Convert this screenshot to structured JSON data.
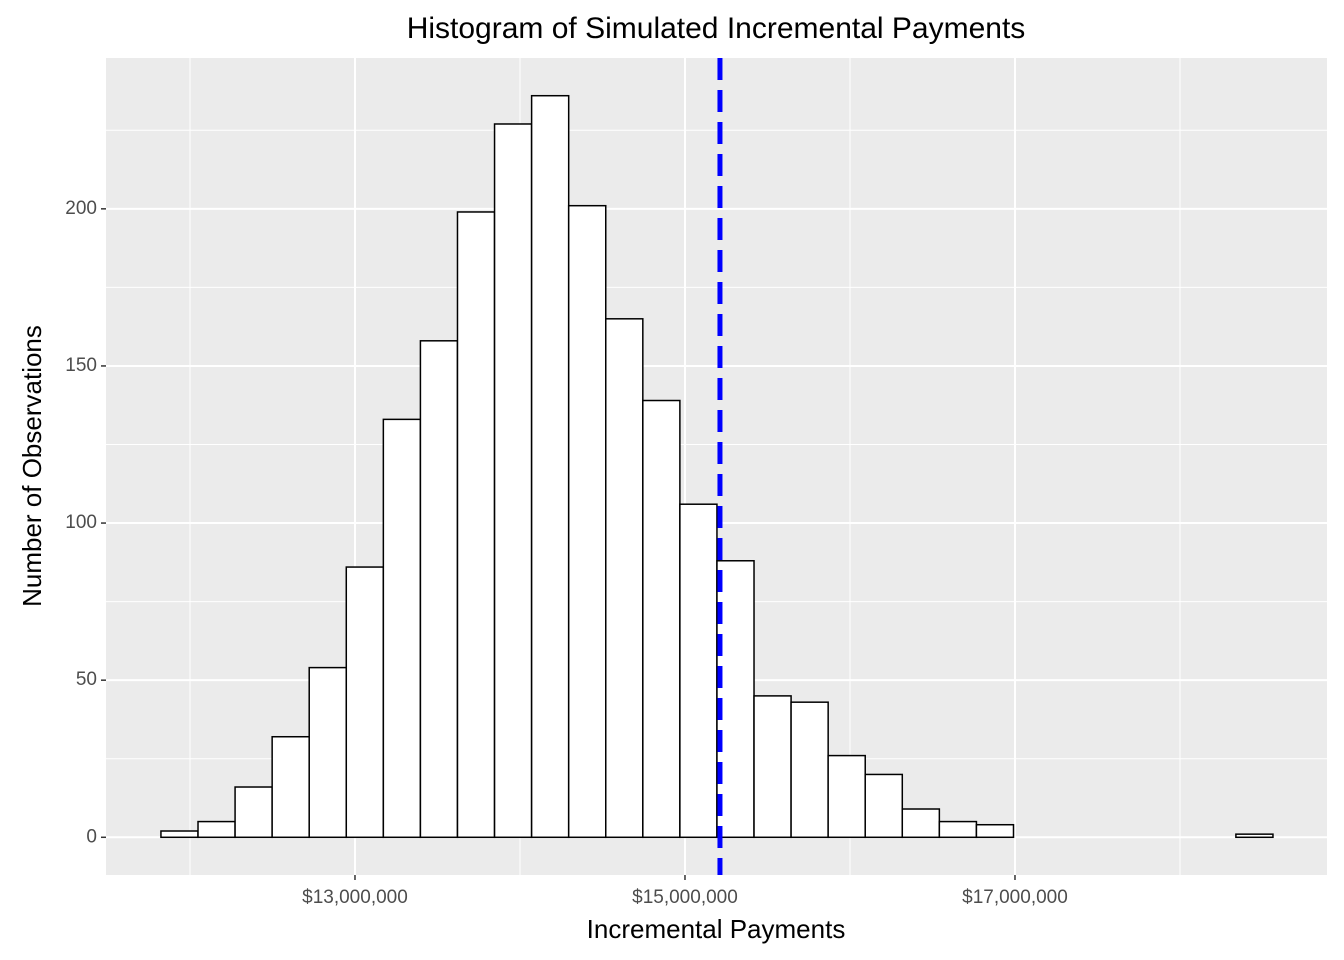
{
  "chart_data": {
    "type": "histogram",
    "title": "Histogram of Simulated Incremental Payments",
    "x_label": "Incremental Payments",
    "y_label": "Number of Observations",
    "bins": [
      11824000,
      12048650,
      12273300,
      12497950,
      12722600,
      12947250,
      13171900,
      13396550,
      13621200,
      13845850,
      14070500,
      14295150,
      14519800,
      14744450,
      14969100,
      15193750,
      15418400,
      15643050,
      15867700,
      16092350,
      16317000,
      16541650,
      16766300,
      16990950,
      17215600,
      17440250,
      17664900,
      17889550,
      18114200,
      18338850,
      18563500
    ],
    "counts": [
      2,
      5,
      16,
      32,
      54,
      86,
      133,
      158,
      199,
      227,
      236,
      201,
      165,
      139,
      106,
      88,
      45,
      43,
      26,
      20,
      9,
      5,
      4,
      0,
      0,
      0,
      0,
      0,
      0,
      1
    ],
    "color": "#ffffff",
    "edge_color": "#000000",
    "vline": 15212000,
    "vline_color": "#0000ff",
    "xlim": [
      11491000,
      18891000
    ],
    "xticks": [
      {
        "value": 13000000,
        "label": "$13,000,000"
      },
      {
        "value": 15000000,
        "label": "$15,000,000"
      },
      {
        "value": 17000000,
        "label": "$17,000,000"
      }
    ],
    "ylim": [
      -12,
      248
    ],
    "yticks": [
      0,
      50,
      100,
      150,
      200
    ],
    "grid": true
  }
}
